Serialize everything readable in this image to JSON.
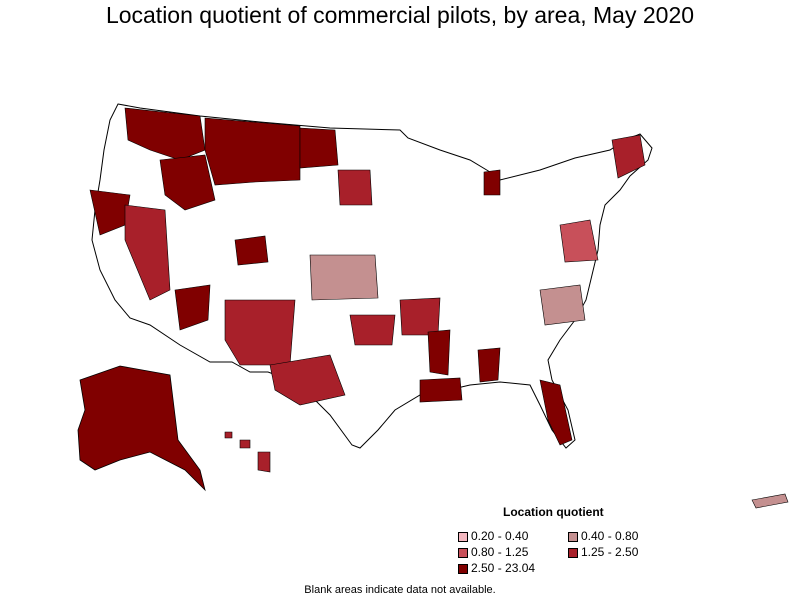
{
  "header": {
    "title": "Location quotient of commercial pilots, by area, May 2020"
  },
  "legend": {
    "title": "Location quotient",
    "items": [
      {
        "label": "0.20 - 0.40",
        "color": "#f4b8c0"
      },
      {
        "label": "0.40 - 0.80",
        "color": "#c49090"
      },
      {
        "label": "0.80 - 1.25",
        "color": "#c8505a"
      },
      {
        "label": "1.25 - 2.50",
        "color": "#a8202a"
      },
      {
        "label": "2.50 - 23.04",
        "color": "#800000"
      }
    ]
  },
  "footnote": "Blank areas indicate data not available.",
  "colors": {
    "boundary": "#000000",
    "no_data": "#ffffff"
  }
}
